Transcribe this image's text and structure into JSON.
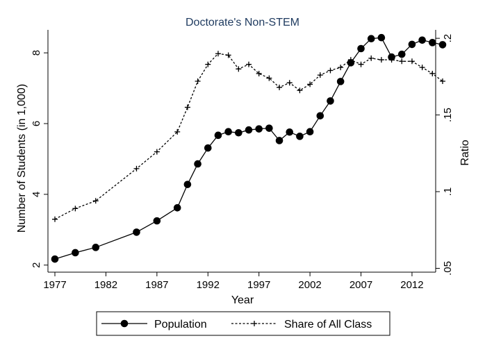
{
  "chart_data": {
    "type": "line",
    "title": "Doctorate's Non-STEM",
    "xlabel": "Year",
    "ylabel_left": "Number of Students (in 1,000)",
    "ylabel_right": "Ratio",
    "xlim": [
      1977,
      2015
    ],
    "ylim_left": [
      1.8,
      8.65
    ],
    "ylim_right": [
      0.0475,
      0.2055
    ],
    "x_ticks": [
      1977,
      1982,
      1987,
      1992,
      1997,
      2002,
      2007,
      2012
    ],
    "x_tick_labels": [
      "1977",
      "1982",
      "1987",
      "1992",
      "1997",
      "2002",
      "2007",
      "2012"
    ],
    "y_left_ticks": [
      2,
      4,
      6,
      8
    ],
    "y_left_tick_labels": [
      "2",
      "4",
      "6",
      "8"
    ],
    "y_right_ticks": [
      0.05,
      0.1,
      0.15,
      0.2
    ],
    "y_right_tick_labels": [
      ".05",
      ".1",
      ".15",
      ".2"
    ],
    "grid": false,
    "legend_position": "bottom",
    "series": [
      {
        "name": "Population",
        "axis": "left",
        "style": "solid",
        "marker": "circle",
        "x": [
          1977,
          1979,
          1981,
          1985,
          1987,
          1989,
          1990,
          1991,
          1992,
          1993,
          1994,
          1995,
          1996,
          1997,
          1998,
          1999,
          2000,
          2001,
          2002,
          2003,
          2004,
          2005,
          2006,
          2007,
          2008,
          2009,
          2010,
          2011,
          2012,
          2013,
          2014,
          2015
        ],
        "values": [
          2.17,
          2.35,
          2.5,
          2.93,
          3.25,
          3.62,
          4.28,
          4.86,
          5.31,
          5.67,
          5.77,
          5.74,
          5.82,
          5.85,
          5.87,
          5.52,
          5.76,
          5.64,
          5.77,
          6.22,
          6.64,
          7.19,
          7.72,
          8.12,
          8.4,
          8.43,
          7.88,
          7.96,
          8.24,
          8.36,
          8.29,
          8.23
        ]
      },
      {
        "name": "Share of All Class",
        "axis": "right",
        "style": "dashed",
        "marker": "plus",
        "x": [
          1977,
          1979,
          1981,
          1985,
          1987,
          1989,
          1990,
          1991,
          1992,
          1993,
          1994,
          1995,
          1996,
          1997,
          1998,
          1999,
          2000,
          2001,
          2002,
          2003,
          2004,
          2005,
          2006,
          2007,
          2008,
          2009,
          2010,
          2011,
          2012,
          2013,
          2014,
          2015
        ],
        "values": [
          0.082,
          0.089,
          0.094,
          0.115,
          0.126,
          0.139,
          0.155,
          0.172,
          0.183,
          0.19,
          0.189,
          0.18,
          0.183,
          0.177,
          0.174,
          0.168,
          0.171,
          0.166,
          0.17,
          0.176,
          0.179,
          0.181,
          0.186,
          0.183,
          0.187,
          0.186,
          0.186,
          0.185,
          0.185,
          0.181,
          0.177,
          0.172
        ]
      }
    ]
  },
  "legend": {
    "items": [
      {
        "label": "Population"
      },
      {
        "label": "Share of All Class"
      }
    ]
  }
}
